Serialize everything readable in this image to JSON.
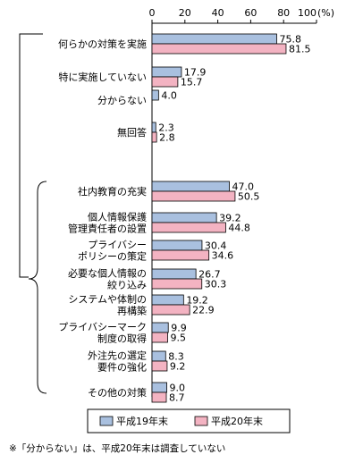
{
  "chart_data": {
    "type": "bar",
    "orientation": "horizontal",
    "x_axis": {
      "min": 0,
      "max": 100,
      "ticks": [
        0,
        20,
        40,
        60,
        80,
        100
      ],
      "unit": "(%)"
    },
    "series": [
      {
        "name": "平成19年末",
        "color": "#a9c0df"
      },
      {
        "name": "平成20年末",
        "color": "#f3b3c2"
      }
    ],
    "categories": [
      {
        "label": [
          "何らかの対策を実施"
        ],
        "values": [
          75.8,
          81.5
        ]
      },
      {
        "label": [
          "特に実施していない"
        ],
        "values": [
          17.9,
          15.7
        ]
      },
      {
        "label": [
          "分からない"
        ],
        "values": [
          4.0,
          null
        ]
      },
      {
        "label": [
          "無回答"
        ],
        "values": [
          2.3,
          2.8
        ]
      },
      {
        "label": [
          "社内教育の充実"
        ],
        "values": [
          47.0,
          50.5
        ]
      },
      {
        "label": [
          "個人情報保護",
          "管理責任者の設置"
        ],
        "values": [
          39.2,
          44.8
        ]
      },
      {
        "label": [
          "プライバシー",
          "ポリシーの策定"
        ],
        "values": [
          30.4,
          34.6
        ]
      },
      {
        "label": [
          "必要な個人情報の",
          "絞り込み"
        ],
        "values": [
          26.7,
          30.3
        ]
      },
      {
        "label": [
          "システムや体制の",
          "再構築"
        ],
        "values": [
          19.2,
          22.9
        ]
      },
      {
        "label": [
          "プライバシーマーク",
          "制度の取得"
        ],
        "values": [
          9.9,
          9.5
        ]
      },
      {
        "label": [
          "外注先の選定",
          "要件の強化"
        ],
        "values": [
          8.3,
          9.2
        ]
      },
      {
        "label": [
          "その他の対策"
        ],
        "values": [
          9.0,
          8.7
        ]
      }
    ],
    "legend_position": "bottom"
  },
  "footnote": "※「分からない」は、平成20年末は調査していない"
}
